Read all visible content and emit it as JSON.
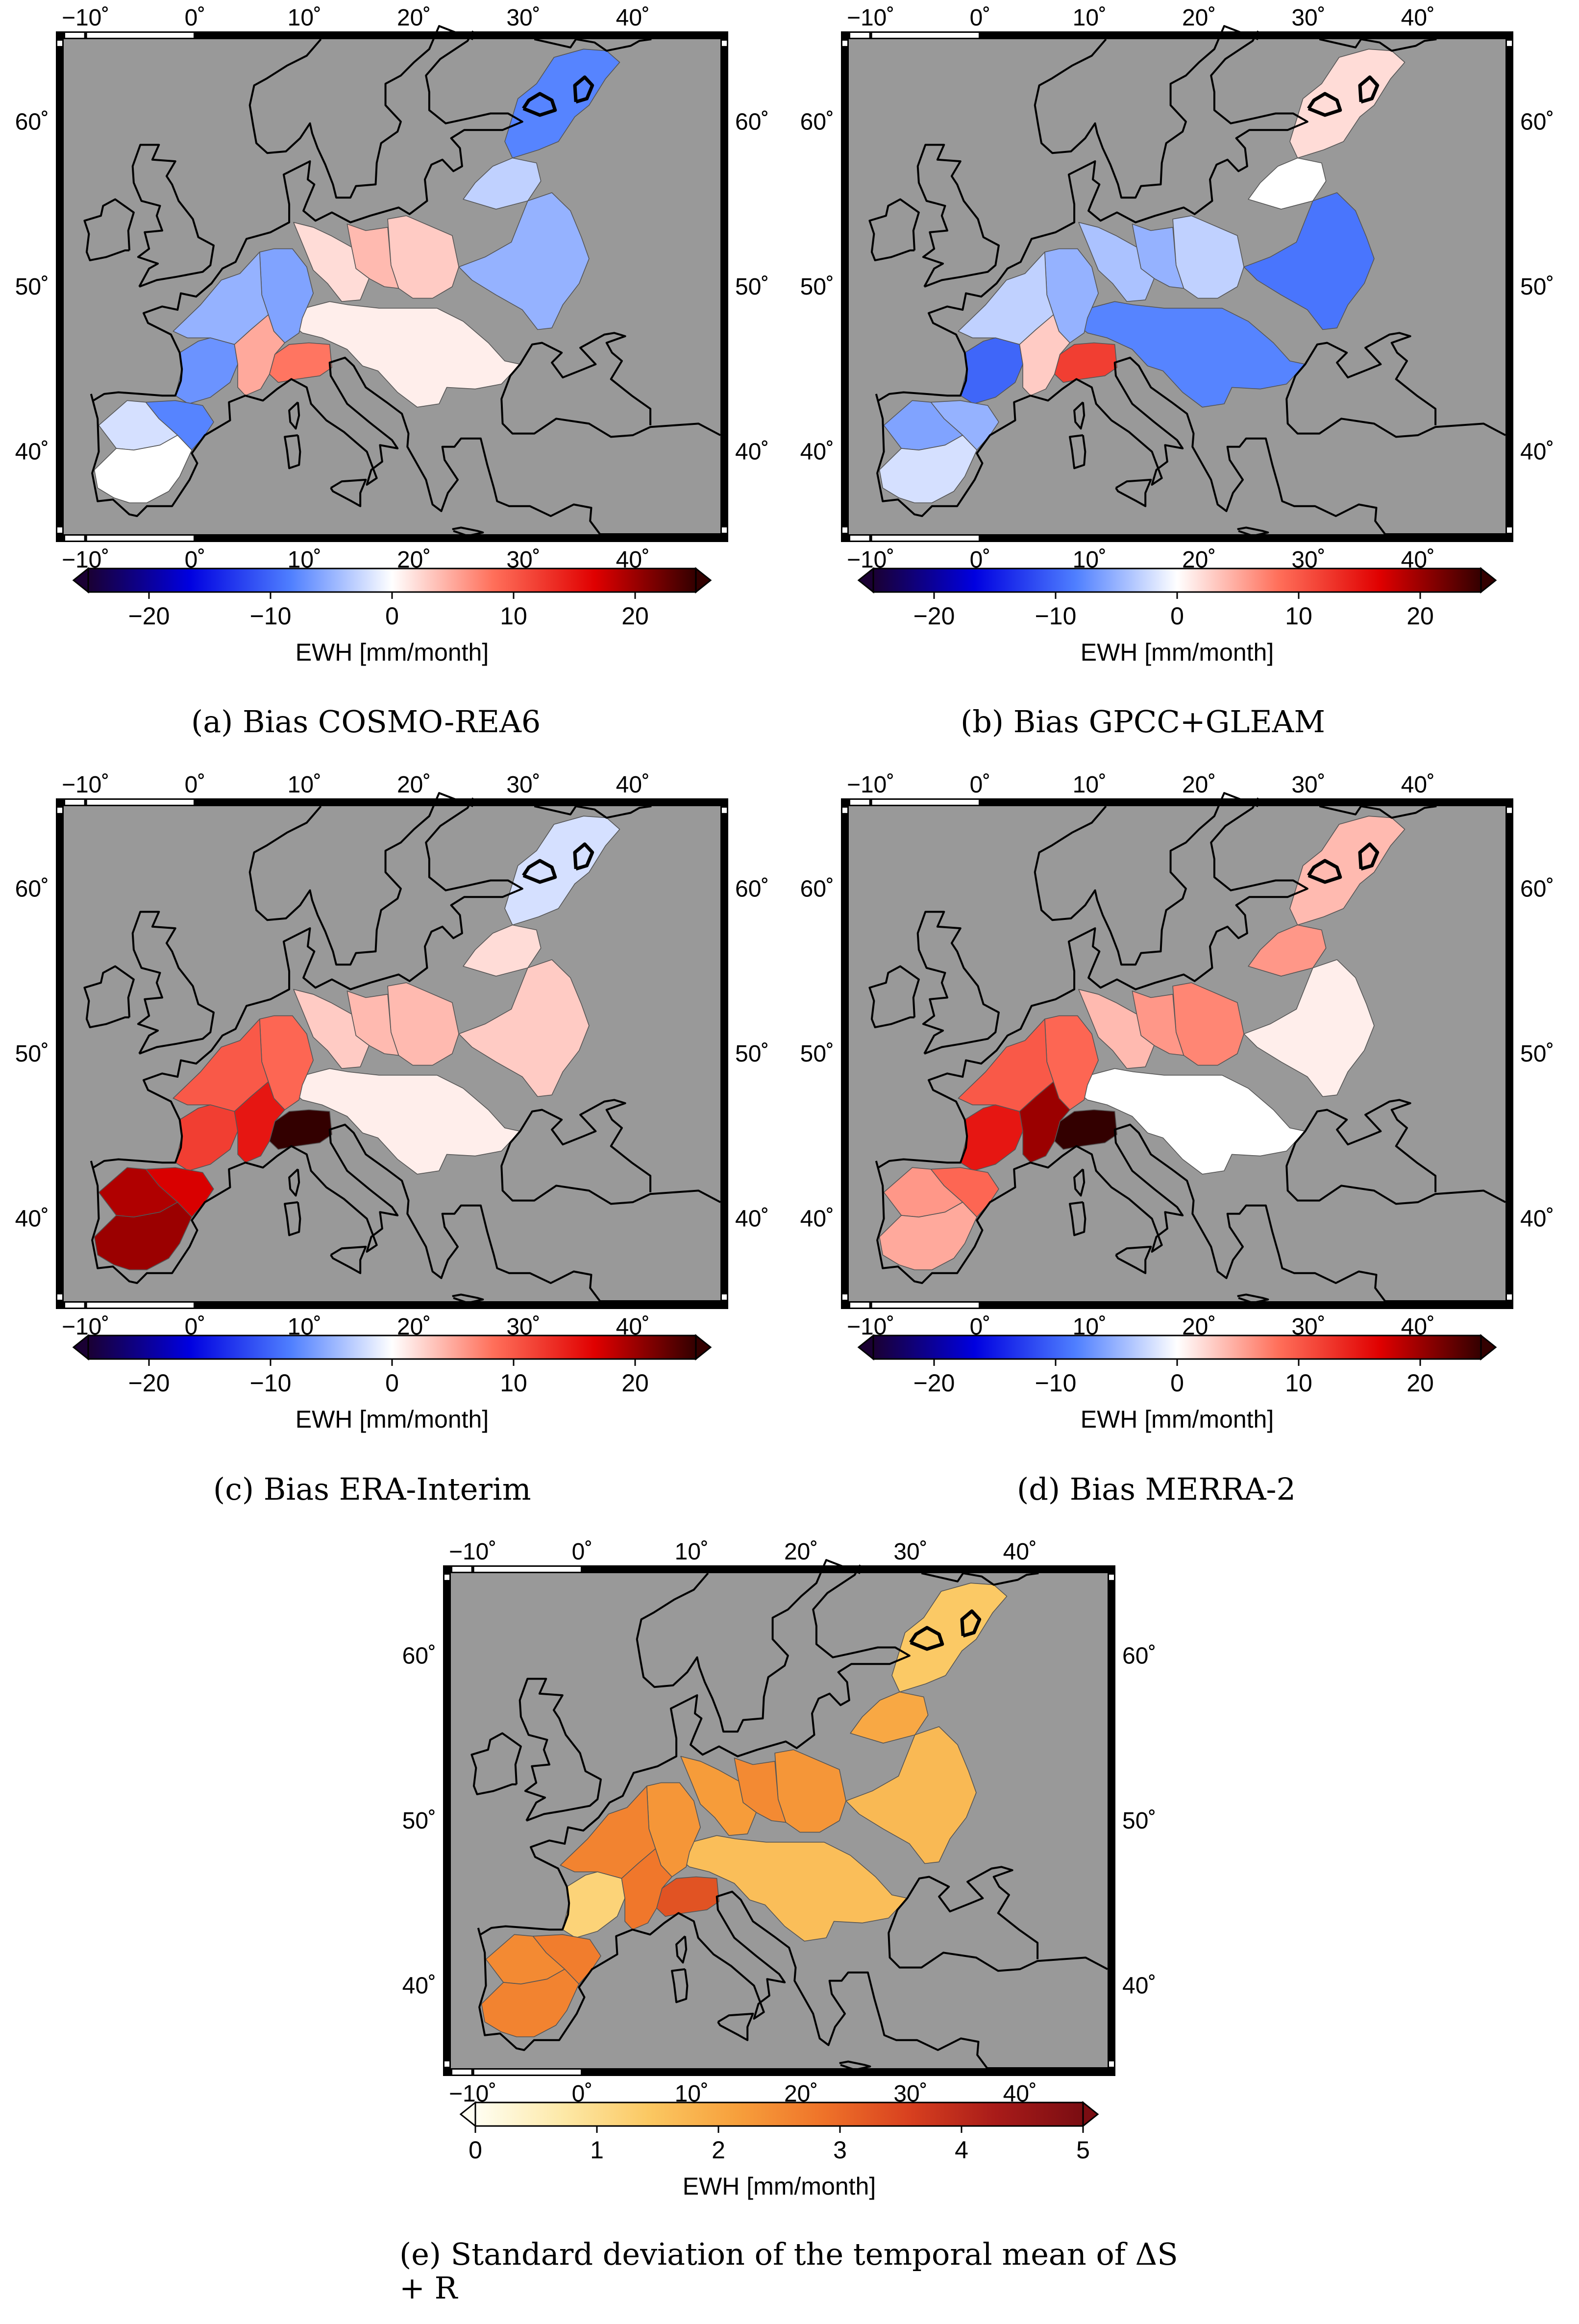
{
  "colors": {
    "ocean": "#999999",
    "coast": "#000000",
    "frame_black": "#000000",
    "frame_white": "#ffffff"
  },
  "map_axes": {
    "lon_ticks": [
      "−10˚",
      "0˚",
      "10˚",
      "20˚",
      "30˚",
      "40˚"
    ],
    "lat_ticks": [
      "60˚",
      "50˚",
      "40˚"
    ]
  },
  "panels": [
    {
      "id": "a",
      "caption": "(a) Bias COSMO-REA6",
      "colorbar": {
        "label": "EWH [mm/month]",
        "ticks": [
          "−20",
          "−10",
          "0",
          "10",
          "20"
        ],
        "range": [
          -25,
          25
        ],
        "palette": [
          "#1a0033",
          "#0000e0",
          "#4f7fff",
          "#ffffff",
          "#ff6f5a",
          "#e00000",
          "#330000"
        ]
      },
      "basin_values": [
        -8,
        -3,
        3,
        4,
        2,
        1,
        -5,
        -6,
        -5,
        -7,
        5,
        8,
        -8,
        -2,
        0
      ]
    },
    {
      "id": "b",
      "caption": "(b) Bias GPCC+GLEAM",
      "colorbar": {
        "label": "EWH [mm/month]",
        "ticks": [
          "−20",
          "−10",
          "0",
          "10",
          "20"
        ],
        "range": [
          -25,
          25
        ],
        "palette": [
          "#1a0033",
          "#0000e0",
          "#4f7fff",
          "#ffffff",
          "#ff6f5a",
          "#e00000",
          "#330000"
        ]
      },
      "basin_values": [
        2,
        0,
        -3,
        -5,
        -4,
        -8,
        -9,
        -5,
        -3,
        -10,
        3,
        12,
        -5,
        -6,
        -2
      ]
    },
    {
      "id": "c",
      "caption": "(c) Bias ERA-Interim",
      "colorbar": {
        "label": "EWH [mm/month]",
        "ticks": [
          "−20",
          "−10",
          "0",
          "10",
          "20"
        ],
        "range": [
          -25,
          25
        ],
        "palette": [
          "#1a0033",
          "#0000e0",
          "#4f7fff",
          "#ffffff",
          "#ff6f5a",
          "#e00000",
          "#330000"
        ]
      },
      "basin_values": [
        -2,
        2,
        4,
        4,
        3,
        1,
        3,
        9,
        10,
        12,
        15,
        25,
        17,
        19,
        20
      ]
    },
    {
      "id": "d",
      "caption": "(d) Bias MERRA-2",
      "colorbar": {
        "label": "EWH [mm/month]",
        "ticks": [
          "−20",
          "−10",
          "0",
          "10",
          "20"
        ],
        "range": [
          -25,
          25
        ],
        "palette": [
          "#1a0033",
          "#0000e0",
          "#4f7fff",
          "#ffffff",
          "#ff6f5a",
          "#e00000",
          "#330000"
        ]
      },
      "basin_values": [
        4,
        6,
        7,
        6,
        4,
        0,
        1,
        9,
        10,
        15,
        20,
        25,
        9,
        6,
        5
      ]
    },
    {
      "id": "e",
      "caption": "(e) Standard deviation of the temporal mean of ΔS + R",
      "colorbar": {
        "label": "EWH [mm/month]",
        "ticks": [
          "0",
          "1",
          "2",
          "3",
          "4",
          "5"
        ],
        "range": [
          0,
          5
        ],
        "palette": [
          "#fffef2",
          "#fde9a8",
          "#fbc862",
          "#f7a03c",
          "#ef7329",
          "#d8401f",
          "#a81b19",
          "#7a0d12"
        ]
      },
      "basin_values": [
        1.4,
        2.0,
        2.3,
        2.5,
        2.2,
        1.6,
        1.7,
        2.3,
        2.6,
        1.2,
        2.8,
        3.3,
        2.7,
        2.5,
        2.6
      ]
    }
  ]
}
